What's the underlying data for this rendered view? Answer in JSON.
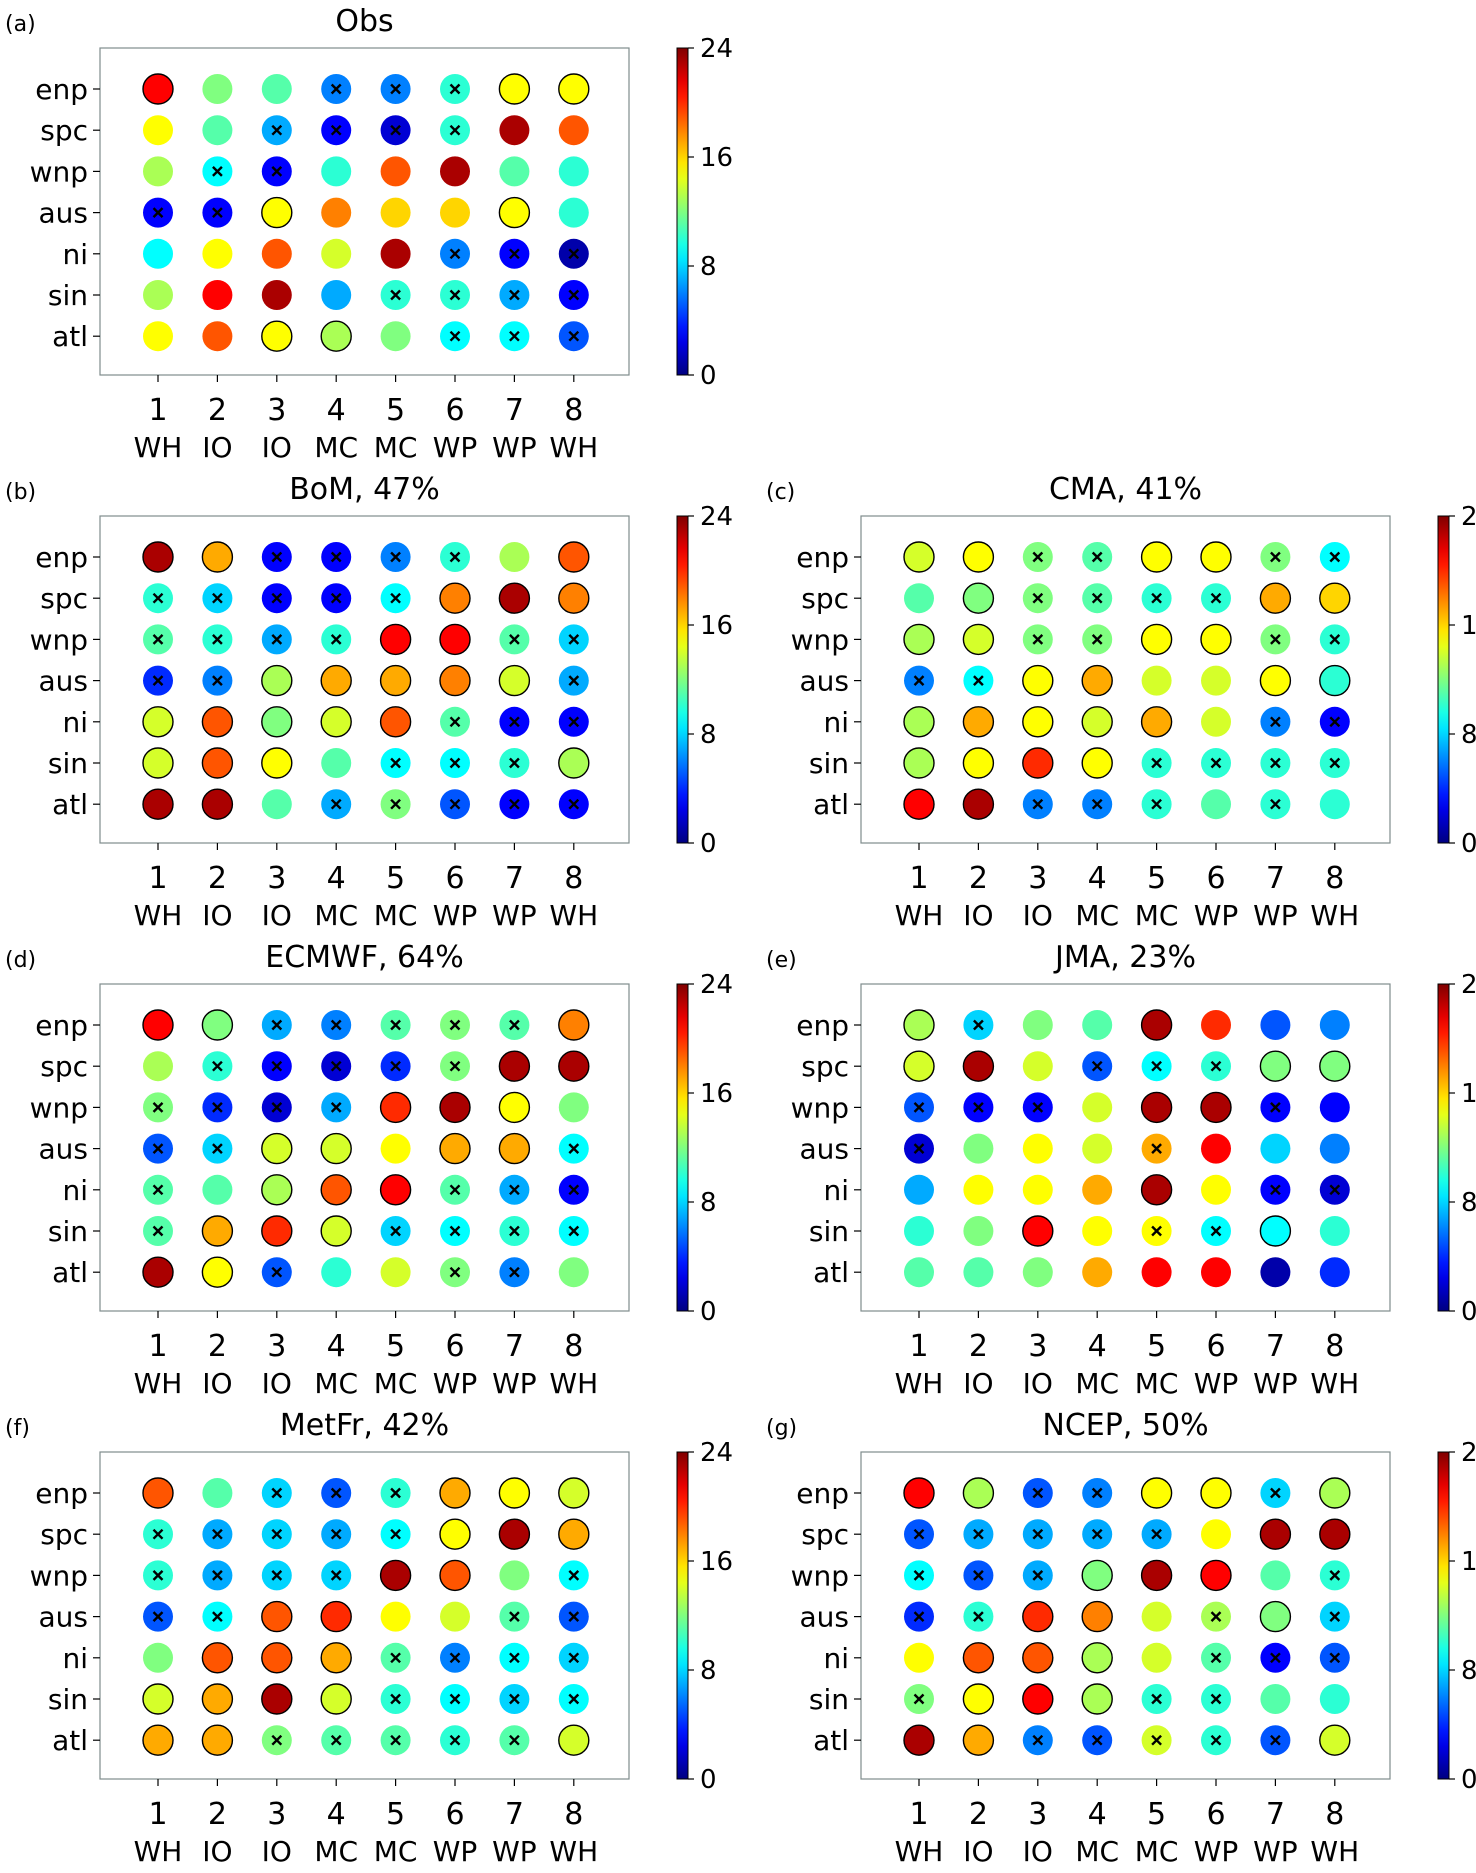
{
  "colorbar": {
    "min": 0,
    "max": 24,
    "ticks": [
      "0",
      "8",
      "16",
      "24"
    ]
  },
  "row_labels": [
    "enp",
    "spc",
    "wnp",
    "aus",
    "ni",
    "sin",
    "atl"
  ],
  "phase_numbers": [
    "1",
    "2",
    "3",
    "4",
    "5",
    "6",
    "7",
    "8"
  ],
  "phase_regions": [
    "WH",
    "IO",
    "IO",
    "MC",
    "MC",
    "WP",
    "WP",
    "WH"
  ],
  "legend_encoding": {
    "o": "circle outline",
    "x": "cross marker",
    "": "no marker"
  },
  "chart_data": [
    {
      "type": "heatmap",
      "panel": "(a)",
      "title": "Obs",
      "values": [
        [
          21,
          12,
          11,
          6,
          6,
          10,
          15,
          15
        ],
        [
          15,
          11,
          7,
          3,
          2,
          10,
          23,
          19
        ],
        [
          13,
          9,
          3,
          10,
          19,
          23,
          11,
          10
        ],
        [
          3,
          3,
          15,
          18,
          16,
          16,
          15,
          10
        ],
        [
          9,
          15,
          19,
          14,
          23,
          6,
          3,
          1
        ],
        [
          13,
          21,
          23,
          7,
          10,
          10,
          7,
          3
        ],
        [
          15,
          19,
          15,
          13,
          12,
          9,
          9,
          5
        ]
      ],
      "markers": [
        [
          "o",
          "",
          "",
          "x",
          "x",
          "x",
          "o",
          "o"
        ],
        [
          "",
          "",
          "x",
          "x",
          "x",
          "x",
          "",
          ""
        ],
        [
          "",
          "x",
          "x",
          "",
          "",
          "",
          "",
          ""
        ],
        [
          "x",
          "x",
          "o",
          "",
          "",
          "",
          "o",
          ""
        ],
        [
          "",
          "",
          "",
          "",
          "",
          "x",
          "x",
          "x"
        ],
        [
          "",
          "",
          "",
          "",
          "x",
          "x",
          "x",
          "x"
        ],
        [
          "",
          "",
          "o",
          "o",
          "",
          "x",
          "x",
          "x"
        ]
      ]
    },
    {
      "type": "heatmap",
      "panel": "(b)",
      "title": "BoM, 47%",
      "values": [
        [
          23,
          17,
          3,
          3,
          6,
          10,
          13,
          19
        ],
        [
          10,
          8,
          3,
          3,
          9,
          18,
          23,
          18
        ],
        [
          11,
          10,
          7,
          10,
          21,
          21,
          11,
          8
        ],
        [
          4,
          6,
          13,
          17,
          17,
          18,
          14,
          7
        ],
        [
          14,
          19,
          12,
          14,
          19,
          11,
          3,
          3
        ],
        [
          14,
          19,
          15,
          11,
          9,
          9,
          10,
          13
        ],
        [
          23,
          23,
          11,
          7,
          12,
          5,
          3,
          3
        ]
      ],
      "markers": [
        [
          "o",
          "o",
          "x",
          "x",
          "x",
          "x",
          "",
          "o"
        ],
        [
          "x",
          "x",
          "x",
          "x",
          "x",
          "o",
          "o",
          "o"
        ],
        [
          "x",
          "x",
          "x",
          "x",
          "o",
          "o",
          "x",
          "x"
        ],
        [
          "x",
          "x",
          "o",
          "o",
          "o",
          "o",
          "o",
          "x"
        ],
        [
          "o",
          "o",
          "o",
          "o",
          "o",
          "x",
          "x",
          "x"
        ],
        [
          "o",
          "o",
          "o",
          "",
          "x",
          "x",
          "x",
          "o"
        ],
        [
          "o",
          "o",
          "",
          "x",
          "x",
          "x",
          "x",
          "x"
        ]
      ]
    },
    {
      "type": "heatmap",
      "panel": "(c)",
      "title": "CMA, 41%",
      "values": [
        [
          14,
          15,
          12,
          11,
          15,
          15,
          12,
          9
        ],
        [
          11,
          12,
          12,
          11,
          10,
          10,
          17,
          16
        ],
        [
          13,
          14,
          12,
          12,
          15,
          15,
          12,
          10
        ],
        [
          6,
          9,
          15,
          17,
          14,
          14,
          15,
          10
        ],
        [
          13,
          17,
          15,
          14,
          17,
          14,
          6,
          3
        ],
        [
          13,
          15,
          20,
          15,
          10,
          10,
          10,
          10
        ],
        [
          21,
          23,
          6,
          6,
          10,
          11,
          10,
          10
        ]
      ],
      "markers": [
        [
          "o",
          "o",
          "x",
          "x",
          "o",
          "o",
          "x",
          "x"
        ],
        [
          "",
          "o",
          "x",
          "x",
          "x",
          "x",
          "o",
          "o"
        ],
        [
          "o",
          "o",
          "x",
          "x",
          "o",
          "o",
          "x",
          "x"
        ],
        [
          "x",
          "x",
          "o",
          "o",
          "",
          "",
          "o",
          "o"
        ],
        [
          "o",
          "o",
          "o",
          "o",
          "o",
          "",
          "x",
          "x"
        ],
        [
          "o",
          "o",
          "o",
          "o",
          "x",
          "x",
          "x",
          "x"
        ],
        [
          "o",
          "o",
          "x",
          "x",
          "x",
          "",
          "x",
          ""
        ]
      ]
    },
    {
      "type": "heatmap",
      "panel": "(d)",
      "title": "ECMWF, 64%",
      "values": [
        [
          21,
          12,
          7,
          6,
          11,
          12,
          11,
          18
        ],
        [
          13,
          10,
          3,
          2,
          4,
          12,
          23,
          23
        ],
        [
          12,
          4,
          2,
          7,
          20,
          23,
          15,
          12
        ],
        [
          5,
          8,
          14,
          14,
          15,
          17,
          17,
          9
        ],
        [
          11,
          11,
          13,
          19,
          21,
          11,
          7,
          3
        ],
        [
          11,
          17,
          20,
          14,
          8,
          9,
          10,
          9
        ],
        [
          23,
          15,
          5,
          10,
          14,
          12,
          6,
          12
        ]
      ],
      "markers": [
        [
          "o",
          "o",
          "x",
          "x",
          "x",
          "x",
          "x",
          "o"
        ],
        [
          "",
          "x",
          "x",
          "x",
          "x",
          "x",
          "o",
          "o"
        ],
        [
          "x",
          "x",
          "x",
          "x",
          "o",
          "o",
          "o",
          ""
        ],
        [
          "x",
          "x",
          "o",
          "o",
          "",
          "o",
          "o",
          "x"
        ],
        [
          "x",
          "",
          "o",
          "o",
          "o",
          "x",
          "x",
          "x"
        ],
        [
          "x",
          "o",
          "o",
          "o",
          "x",
          "x",
          "x",
          "x"
        ],
        [
          "o",
          "o",
          "x",
          "",
          "",
          "x",
          "x",
          ""
        ]
      ]
    },
    {
      "type": "heatmap",
      "panel": "(e)",
      "title": "JMA, 23%",
      "values": [
        [
          13,
          8,
          12,
          11,
          23,
          20,
          5,
          6
        ],
        [
          14,
          23,
          14,
          5,
          9,
          10,
          12,
          12
        ],
        [
          5,
          3,
          3,
          14,
          23,
          23,
          3,
          3
        ],
        [
          2,
          12,
          15,
          14,
          17,
          21,
          8,
          6
        ],
        [
          7,
          15,
          15,
          17,
          23,
          15,
          3,
          2
        ],
        [
          10,
          12,
          21,
          15,
          15,
          9,
          9,
          10
        ],
        [
          11,
          11,
          12,
          17,
          21,
          21,
          1,
          4
        ]
      ],
      "markers": [
        [
          "o",
          "x",
          "",
          "",
          "o",
          "",
          "",
          ""
        ],
        [
          "o",
          "o",
          "",
          "x",
          "x",
          "x",
          "o",
          "o"
        ],
        [
          "x",
          "x",
          "x",
          "",
          "o",
          "o",
          "x",
          ""
        ],
        [
          "x",
          "",
          "",
          "",
          "x",
          "",
          "",
          ""
        ],
        [
          "",
          "",
          "",
          "",
          "o",
          "",
          "x",
          "x"
        ],
        [
          "",
          "",
          "o",
          "",
          "x",
          "x",
          "o",
          ""
        ],
        [
          "",
          "",
          "",
          "",
          "",
          "",
          "",
          ""
        ]
      ]
    },
    {
      "type": "heatmap",
      "panel": "(f)",
      "title": "MetFr, 42%",
      "values": [
        [
          19,
          11,
          8,
          5,
          10,
          17,
          15,
          14
        ],
        [
          10,
          7,
          8,
          7,
          9,
          15,
          23,
          17
        ],
        [
          10,
          7,
          8,
          8,
          23,
          19,
          12,
          9
        ],
        [
          5,
          9,
          19,
          20,
          15,
          14,
          11,
          5
        ],
        [
          12,
          19,
          19,
          17,
          11,
          6,
          9,
          8
        ],
        [
          14,
          17,
          23,
          14,
          10,
          9,
          8,
          9
        ],
        [
          17,
          17,
          12,
          11,
          11,
          10,
          11,
          14
        ]
      ],
      "markers": [
        [
          "o",
          "",
          "x",
          "x",
          "x",
          "o",
          "o",
          "o"
        ],
        [
          "x",
          "x",
          "x",
          "x",
          "x",
          "o",
          "o",
          "o"
        ],
        [
          "x",
          "x",
          "x",
          "x",
          "o",
          "o",
          "",
          "x"
        ],
        [
          "x",
          "x",
          "o",
          "o",
          "",
          "",
          "x",
          "x"
        ],
        [
          "",
          "o",
          "o",
          "o",
          "x",
          "x",
          "x",
          "x"
        ],
        [
          "o",
          "o",
          "o",
          "o",
          "x",
          "x",
          "x",
          "x"
        ],
        [
          "o",
          "o",
          "x",
          "x",
          "x",
          "x",
          "x",
          "o"
        ]
      ]
    },
    {
      "type": "heatmap",
      "panel": "(g)",
      "title": "NCEP, 50%",
      "values": [
        [
          21,
          13,
          5,
          6,
          15,
          15,
          8,
          13
        ],
        [
          5,
          7,
          7,
          7,
          7,
          15,
          23,
          23
        ],
        [
          9,
          5,
          7,
          12,
          23,
          21,
          11,
          10
        ],
        [
          4,
          10,
          20,
          18,
          14,
          13,
          12,
          8
        ],
        [
          15,
          19,
          19,
          13,
          14,
          11,
          3,
          5
        ],
        [
          12,
          15,
          21,
          13,
          10,
          10,
          11,
          10
        ],
        [
          23,
          17,
          6,
          5,
          14,
          10,
          5,
          14
        ]
      ],
      "markers": [
        [
          "o",
          "o",
          "x",
          "x",
          "o",
          "o",
          "x",
          "o"
        ],
        [
          "x",
          "x",
          "x",
          "x",
          "x",
          "",
          "o",
          "o"
        ],
        [
          "x",
          "x",
          "x",
          "o",
          "o",
          "o",
          "",
          "x"
        ],
        [
          "x",
          "x",
          "o",
          "o",
          "",
          "x",
          "o",
          "x"
        ],
        [
          "",
          "o",
          "o",
          "o",
          "",
          "x",
          "x",
          "x"
        ],
        [
          "x",
          "o",
          "o",
          "o",
          "x",
          "x",
          "",
          ""
        ],
        [
          "o",
          "o",
          "x",
          "x",
          "x",
          "x",
          "x",
          "o"
        ]
      ]
    }
  ]
}
